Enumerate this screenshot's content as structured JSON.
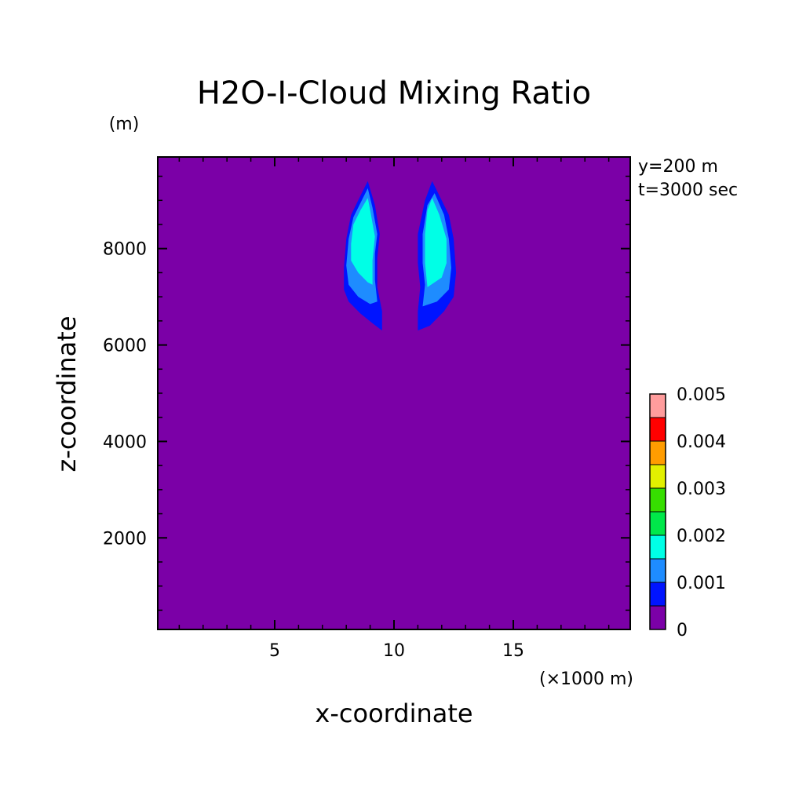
{
  "chart_data": {
    "type": "heatmap",
    "title": "H2O-I-Cloud Mixing Ratio",
    "xlabel": "x-coordinate",
    "ylabel": "z-coordinate",
    "x_unit": "(×1000 m)",
    "y_unit": "(m)",
    "annotations": [
      "y=200 m",
      "t=3000 sec"
    ],
    "xlim": [
      0.1,
      19.9
    ],
    "ylim": [
      100,
      9900
    ],
    "x_ticks": [
      5,
      10,
      15
    ],
    "x_tick_labels": [
      "5",
      "10",
      "15"
    ],
    "y_ticks": [
      2000,
      4000,
      6000,
      8000
    ],
    "y_tick_labels": [
      "2000",
      "4000",
      "6000",
      "8000"
    ],
    "background_level": 0,
    "colorbar": {
      "levels": [
        0,
        0.0005,
        0.001,
        0.0015,
        0.002,
        0.0025,
        0.003,
        0.0035,
        0.004,
        0.0045,
        0.005
      ],
      "tick_labels": [
        "0",
        "0.001",
        "0.002",
        "0.003",
        "0.004",
        "0.005"
      ],
      "colors": [
        "#7b00a7",
        "#0014ff",
        "#1e8cff",
        "#00ffe6",
        "#00e84a",
        "#36de00",
        "#e2f000",
        "#ff9c00",
        "#ff0000",
        "#ff9c9c"
      ]
    },
    "contours": [
      {
        "name": "left plume",
        "bands": [
          {
            "min": 0.0005,
            "points": [
              [
                9.5,
                6300
              ],
              [
                9.5,
                6700
              ],
              [
                9.3,
                7200
              ],
              [
                9.3,
                7800
              ],
              [
                9.4,
                8300
              ],
              [
                9.2,
                8900
              ],
              [
                8.9,
                9400
              ],
              [
                8.6,
                9100
              ],
              [
                8.2,
                8700
              ],
              [
                8.0,
                8200
              ],
              [
                7.9,
                7600
              ],
              [
                7.9,
                7150
              ],
              [
                8.1,
                6900
              ],
              [
                8.6,
                6650
              ],
              [
                9.1,
                6450
              ]
            ]
          },
          {
            "min": 0.001,
            "points": [
              [
                9.3,
                6900
              ],
              [
                9.2,
                7350
              ],
              [
                9.2,
                7900
              ],
              [
                9.3,
                8300
              ],
              [
                9.1,
                8850
              ],
              [
                8.9,
                9250
              ],
              [
                8.6,
                8950
              ],
              [
                8.3,
                8650
              ],
              [
                8.1,
                8200
              ],
              [
                8.0,
                7650
              ],
              [
                8.1,
                7250
              ],
              [
                8.5,
                7000
              ],
              [
                9.0,
                6850
              ]
            ]
          },
          {
            "min": 0.0015,
            "points": [
              [
                9.1,
                7250
              ],
              [
                9.1,
                7750
              ],
              [
                9.2,
                8250
              ],
              [
                9.0,
                8800
              ],
              [
                8.9,
                9050
              ],
              [
                8.6,
                8800
              ],
              [
                8.3,
                8500
              ],
              [
                8.2,
                8100
              ],
              [
                8.2,
                7750
              ],
              [
                8.5,
                7500
              ],
              [
                8.9,
                7300
              ]
            ]
          }
        ]
      },
      {
        "name": "right plume",
        "bands": [
          {
            "min": 0.0005,
            "points": [
              [
                11.0,
                6300
              ],
              [
                11.5,
                6400
              ],
              [
                12.1,
                6700
              ],
              [
                12.5,
                7000
              ],
              [
                12.6,
                7500
              ],
              [
                12.5,
                8200
              ],
              [
                12.3,
                8700
              ],
              [
                12.0,
                9000
              ],
              [
                11.6,
                9400
              ],
              [
                11.3,
                9000
              ],
              [
                11.0,
                8300
              ],
              [
                11.0,
                7700
              ],
              [
                11.1,
                7200
              ],
              [
                11.0,
                6700
              ]
            ]
          },
          {
            "min": 0.001,
            "points": [
              [
                11.2,
                6800
              ],
              [
                11.8,
                6900
              ],
              [
                12.3,
                7150
              ],
              [
                12.4,
                7600
              ],
              [
                12.3,
                8200
              ],
              [
                12.1,
                8700
              ],
              [
                11.7,
                9150
              ],
              [
                11.4,
                8900
              ],
              [
                11.2,
                8300
              ],
              [
                11.2,
                7700
              ],
              [
                11.3,
                7250
              ]
            ]
          },
          {
            "min": 0.0015,
            "points": [
              [
                11.4,
                7200
              ],
              [
                12.0,
                7400
              ],
              [
                12.2,
                7700
              ],
              [
                12.2,
                8200
              ],
              [
                11.9,
                8700
              ],
              [
                11.6,
                9050
              ],
              [
                11.4,
                8800
              ],
              [
                11.3,
                8300
              ],
              [
                11.3,
                7700
              ]
            ]
          }
        ]
      }
    ]
  }
}
